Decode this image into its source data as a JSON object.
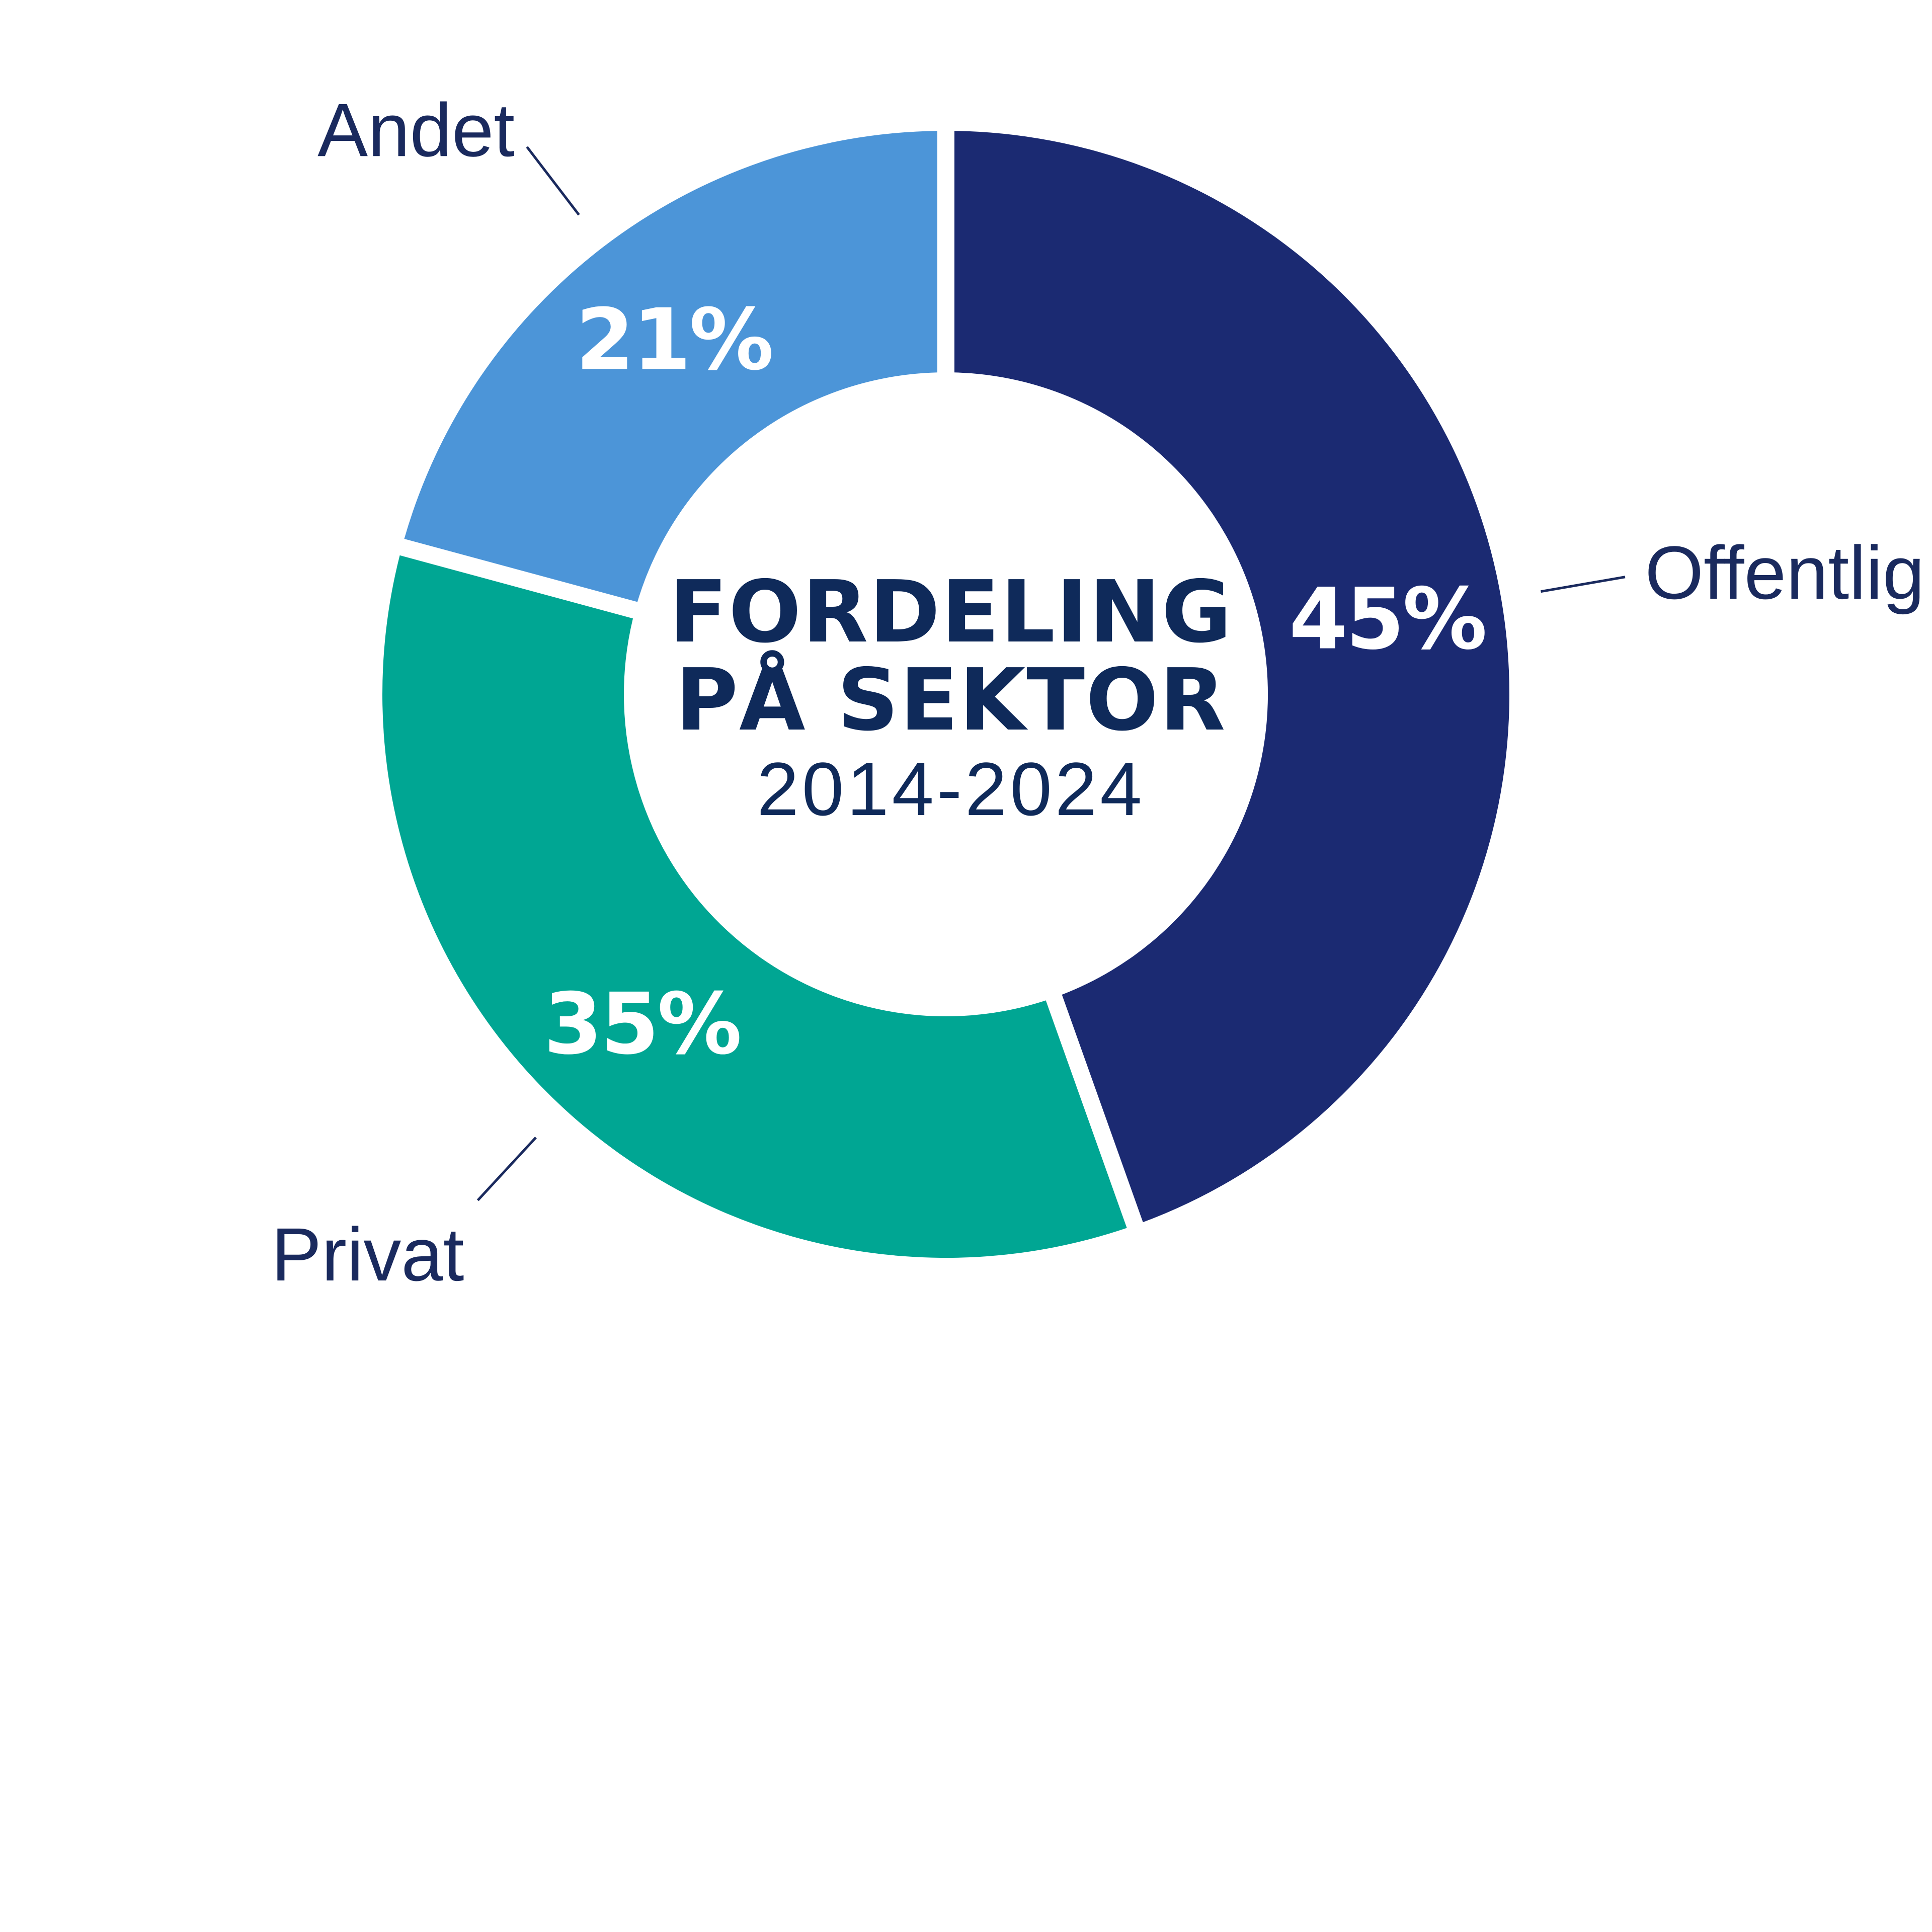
{
  "chart_data": {
    "type": "pie",
    "title": "FORDELING PÅ SEKTOR",
    "subtitle": "2014-2024",
    "slices": [
      {
        "label": "Offentlig",
        "value": 45,
        "value_label": "45%",
        "color": "#1b2a72"
      },
      {
        "label": "Privat",
        "value": 35,
        "value_label": "35%",
        "color": "#00a693"
      },
      {
        "label": "Andet",
        "value": 21,
        "value_label": "21%",
        "color": "#4c95d8"
      }
    ],
    "donut": true,
    "start_angle_deg": 0,
    "direction": "clockwise",
    "legend": "none"
  }
}
